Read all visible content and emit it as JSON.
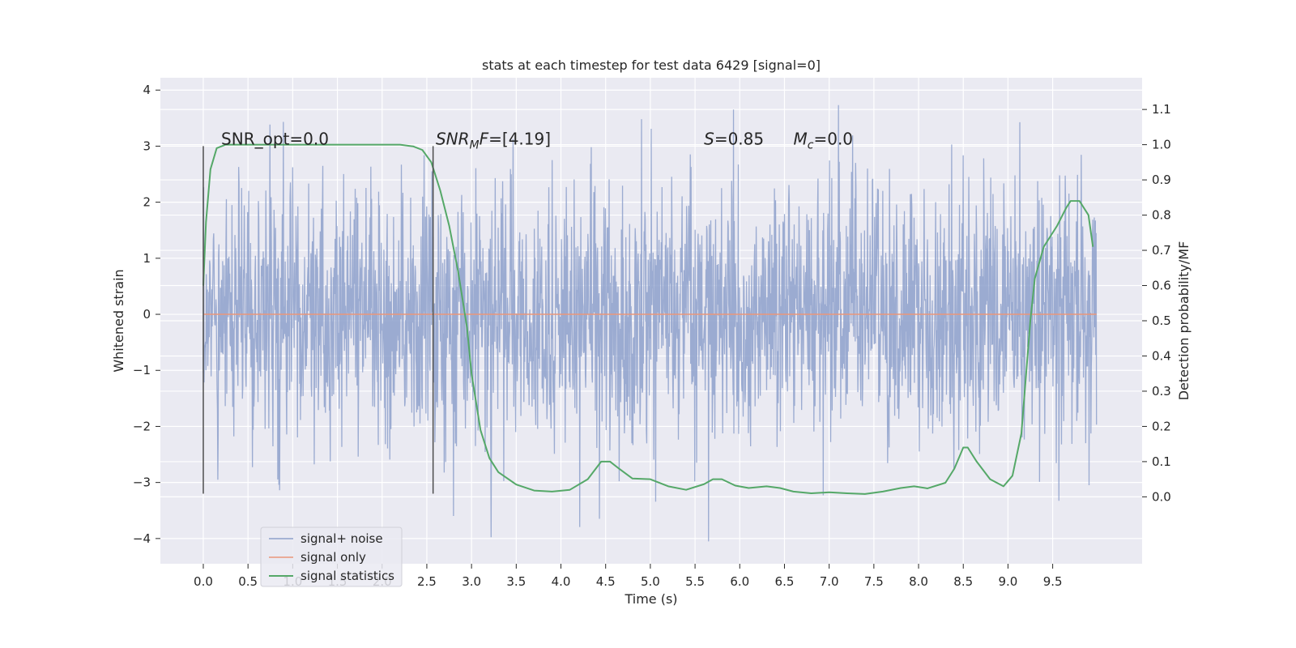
{
  "chart_data": {
    "type": "line",
    "title": "stats at each timestep for test data 6429 [signal=0]",
    "xlabel": "Time (s)",
    "ylabel": "Whitened strain",
    "y2label": "Detection probability/MF",
    "xlim": [
      -0.48,
      10.5
    ],
    "ylim": [
      -4.45,
      4.22
    ],
    "y2lim": [
      -0.19,
      1.19
    ],
    "xticks": [
      0.0,
      0.5,
      1.0,
      1.5,
      2.0,
      2.5,
      3.0,
      3.5,
      4.0,
      4.5,
      5.0,
      5.5,
      6.0,
      6.5,
      7.0,
      7.5,
      8.0,
      8.5,
      9.0,
      9.5
    ],
    "xtick_labels": [
      "0.0",
      "0.5",
      "1.0",
      "1.5",
      "2.0",
      "2.5",
      "3.0",
      "3.5",
      "4.0",
      "4.5",
      "5.0",
      "5.5",
      "6.0",
      "6.5",
      "7.0",
      "7.5",
      "8.0",
      "8.5",
      "9.0",
      "9.5"
    ],
    "yticks": [
      -4,
      -3,
      -2,
      -1,
      0,
      1,
      2,
      3,
      4
    ],
    "ytick_labels": [
      "−4",
      "−3",
      "−2",
      "−1",
      "0",
      "1",
      "2",
      "3",
      "4"
    ],
    "y2ticks": [
      0.0,
      0.1,
      0.2,
      0.3,
      0.4,
      0.5,
      0.6,
      0.7,
      0.8,
      0.9,
      1.0,
      1.1
    ],
    "y2tick_labels": [
      "0.0",
      "0.1",
      "0.2",
      "0.3",
      "0.4",
      "0.5",
      "0.6",
      "0.7",
      "0.8",
      "0.9",
      "1.0",
      "1.1"
    ],
    "grid": true,
    "legend_position": "lower-left",
    "series": [
      {
        "name": "signal+ noise",
        "color": "#8da0cb",
        "axis": "left",
        "style": "noise",
        "x_range": [
          0.0,
          9.99
        ],
        "typical_amplitude": 1.1,
        "max_value": 3.87,
        "min_value": -4.05
      },
      {
        "name": "signal only",
        "color": "#e9967a",
        "axis": "left",
        "x": [
          0.0,
          9.99
        ],
        "y": [
          0.0,
          0.0
        ]
      },
      {
        "name": "signal statistics",
        "color": "#55a868",
        "axis": "right",
        "x": [
          0.0,
          0.03,
          0.08,
          0.15,
          0.25,
          0.5,
          1.0,
          1.5,
          2.0,
          2.2,
          2.35,
          2.45,
          2.55,
          2.65,
          2.75,
          2.85,
          2.95,
          3.0,
          3.1,
          3.2,
          3.3,
          3.5,
          3.7,
          3.9,
          4.1,
          4.3,
          4.45,
          4.55,
          4.65,
          4.8,
          5.0,
          5.2,
          5.4,
          5.6,
          5.7,
          5.8,
          5.95,
          6.1,
          6.3,
          6.45,
          6.6,
          6.8,
          7.0,
          7.2,
          7.4,
          7.6,
          7.8,
          7.95,
          8.1,
          8.3,
          8.4,
          8.5,
          8.55,
          8.65,
          8.8,
          8.95,
          9.05,
          9.15,
          9.25,
          9.3,
          9.4,
          9.55,
          9.65,
          9.7,
          9.8,
          9.9,
          9.95
        ],
        "y": [
          0.6,
          0.78,
          0.93,
          0.99,
          1.0,
          1.0,
          1.0,
          1.0,
          1.0,
          1.0,
          0.995,
          0.985,
          0.95,
          0.87,
          0.77,
          0.64,
          0.48,
          0.35,
          0.19,
          0.11,
          0.07,
          0.035,
          0.018,
          0.015,
          0.02,
          0.05,
          0.1,
          0.1,
          0.08,
          0.052,
          0.05,
          0.03,
          0.02,
          0.036,
          0.05,
          0.05,
          0.032,
          0.025,
          0.03,
          0.025,
          0.015,
          0.01,
          0.013,
          0.01,
          0.008,
          0.015,
          0.025,
          0.03,
          0.024,
          0.04,
          0.08,
          0.14,
          0.14,
          0.1,
          0.05,
          0.03,
          0.06,
          0.18,
          0.5,
          0.62,
          0.71,
          0.77,
          0.82,
          0.84,
          0.84,
          0.8,
          0.71
        ]
      }
    ],
    "vlines": [
      {
        "x": 0.0,
        "ymin": -3.2,
        "ymax": 3.0
      },
      {
        "x": 2.57,
        "ymin": -3.2,
        "ymax": 3.0
      }
    ],
    "annotations": [
      {
        "x": 0.2,
        "y": 3.0,
        "parts": [
          {
            "t": "SNR_opt=0.0",
            "italic": false,
            "sub": false
          }
        ]
      },
      {
        "x": 2.6,
        "y": 3.0,
        "parts": [
          {
            "t": "SNR",
            "italic": true,
            "sub": false
          },
          {
            "t": "M",
            "italic": true,
            "sub": true
          },
          {
            "t": "F",
            "italic": true,
            "sub": false
          },
          {
            "t": "=[4.19]",
            "italic": false,
            "sub": false
          }
        ]
      },
      {
        "x": 5.6,
        "y": 3.0,
        "parts": [
          {
            "t": "S",
            "italic": true,
            "sub": false
          },
          {
            "t": "=0.85",
            "italic": false,
            "sub": false
          }
        ]
      },
      {
        "x": 6.6,
        "y": 3.0,
        "parts": [
          {
            "t": "M",
            "italic": true,
            "sub": false
          },
          {
            "t": "c",
            "italic": true,
            "sub": true
          },
          {
            "t": "=0.0",
            "italic": false,
            "sub": false
          }
        ]
      }
    ],
    "colors": {
      "plot_background": "#eaeaf2",
      "grid": "#ffffff",
      "vline": "#4d4d4d"
    }
  }
}
